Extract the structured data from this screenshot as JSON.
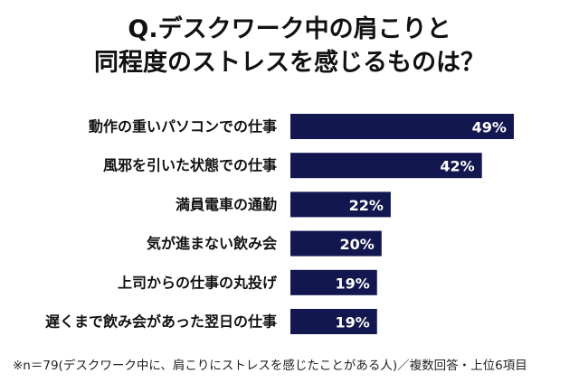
{
  "title": {
    "line1": "Q.デスクワーク中の肩こりと",
    "line2": "同程度のストレスを感じるものは？"
  },
  "footnote": "※n＝79(デスクワーク中に、肩こりにストレスを感じたことがある人)／複数回答・上位6項目",
  "colors": {
    "bar": "#13174f",
    "bar_label": "#ffffff",
    "category_text": "#111111"
  },
  "chart_data": {
    "type": "bar",
    "orientation": "horizontal",
    "categories": [
      "動作の重いパソコンでの仕事",
      "風邪を引いた状態での仕事",
      "満員電車の通勤",
      "気が進まない飲み会",
      "上司からの仕事の丸投げ",
      "遅くまで飲み会があった翌日の仕事"
    ],
    "values": [
      49,
      42,
      22,
      20,
      19,
      19
    ],
    "data_labels": [
      "49%",
      "42%",
      "22%",
      "20%",
      "19%",
      "19%"
    ],
    "title": "",
    "xlabel": "",
    "ylabel": "",
    "xlim": [
      0,
      50
    ],
    "grid": false,
    "legend": "none"
  }
}
